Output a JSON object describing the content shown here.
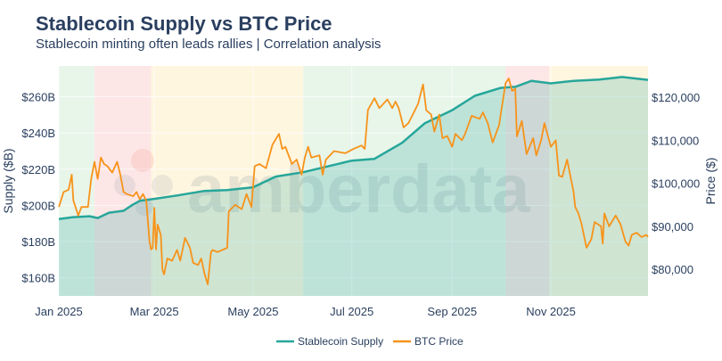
{
  "chart_data": {
    "type": "line",
    "title": "Stablecoin Supply vs BTC Price",
    "subtitle": "Stablecoin minting often leads rallies | Correlation analysis",
    "xlim": [
      "2025-01-01",
      "2025-12-31"
    ],
    "x_ticks": [
      {
        "date": "2025-01-01",
        "label": "Jan 2025"
      },
      {
        "date": "2025-03-01",
        "label": "Mar 2025"
      },
      {
        "date": "2025-05-01",
        "label": "May 2025"
      },
      {
        "date": "2025-07-01",
        "label": "Jul 2025"
      },
      {
        "date": "2025-09-01",
        "label": "Sep 2025"
      },
      {
        "date": "2025-11-01",
        "label": "Nov 2025"
      }
    ],
    "y_left": {
      "label": "Supply ($B)",
      "range": [
        150,
        277
      ],
      "ticks": [
        160,
        180,
        200,
        220,
        240,
        260
      ],
      "tick_labels": [
        "$160B",
        "$180B",
        "$200B",
        "$220B",
        "$240B",
        "$260B"
      ]
    },
    "y_right": {
      "label": "Price ($)",
      "range": [
        73800,
        127300
      ],
      "ticks": [
        80000,
        90000,
        100000,
        110000,
        120000
      ],
      "tick_labels": [
        "$80,000",
        "$90,000",
        "$100,000",
        "$110,000",
        "$120,000"
      ]
    },
    "grid": true,
    "legend": "bottom-center",
    "watermark": "amberdata",
    "regimes": [
      {
        "start": "2025-01-01",
        "end": "2025-01-23",
        "color": "#e8f5e9"
      },
      {
        "start": "2025-01-23",
        "end": "2025-02-27",
        "color": "#fde6e6"
      },
      {
        "start": "2025-02-27",
        "end": "2025-06-01",
        "color": "#fff6e0"
      },
      {
        "start": "2025-06-01",
        "end": "2025-10-04",
        "color": "#e8f5e9"
      },
      {
        "start": "2025-10-04",
        "end": "2025-10-31",
        "color": "#fde6e6"
      },
      {
        "start": "2025-10-31",
        "end": "2025-12-31",
        "color": "#fff6e0"
      }
    ],
    "series": [
      {
        "name": "Stablecoin Supply",
        "axis": "left",
        "color": "#26a69a",
        "fill": true,
        "points": [
          [
            "2025-01-01",
            192.5
          ],
          [
            "2025-01-10",
            193.5
          ],
          [
            "2025-01-20",
            194
          ],
          [
            "2025-01-25",
            193
          ],
          [
            "2025-02-01",
            196
          ],
          [
            "2025-02-10",
            197
          ],
          [
            "2025-02-15",
            200
          ],
          [
            "2025-02-20",
            202.5
          ],
          [
            "2025-03-01",
            203.6
          ],
          [
            "2025-03-15",
            205.5
          ],
          [
            "2025-04-01",
            208
          ],
          [
            "2025-04-15",
            208.5
          ],
          [
            "2025-05-01",
            210
          ],
          [
            "2025-05-15",
            215.9
          ],
          [
            "2025-06-01",
            218.3
          ],
          [
            "2025-07-01",
            224.7
          ],
          [
            "2025-07-15",
            225.7
          ],
          [
            "2025-08-01",
            234.5
          ],
          [
            "2025-08-15",
            245.3
          ],
          [
            "2025-09-01",
            252.6
          ],
          [
            "2025-09-15",
            260.5
          ],
          [
            "2025-10-01",
            264.9
          ],
          [
            "2025-10-10",
            265.5
          ],
          [
            "2025-10-20",
            268.8
          ],
          [
            "2025-11-01",
            267.4
          ],
          [
            "2025-11-15",
            268.8
          ],
          [
            "2025-12-01",
            269.5
          ],
          [
            "2025-12-15",
            270.9
          ],
          [
            "2025-12-31",
            269.3
          ]
        ]
      },
      {
        "name": "BTC Price",
        "axis": "right",
        "color": "#f7931a",
        "fill": false,
        "points": [
          [
            "2025-01-01",
            94500
          ],
          [
            "2025-01-04",
            98000
          ],
          [
            "2025-01-07",
            98500
          ],
          [
            "2025-01-09",
            102000
          ],
          [
            "2025-01-10",
            96000
          ],
          [
            "2025-01-13",
            92500
          ],
          [
            "2025-01-15",
            94500
          ],
          [
            "2025-01-19",
            94500
          ],
          [
            "2025-01-21",
            101000
          ],
          [
            "2025-01-23",
            105000
          ],
          [
            "2025-01-25",
            101000
          ],
          [
            "2025-01-27",
            106000
          ],
          [
            "2025-01-29",
            104500
          ],
          [
            "2025-01-31",
            104000
          ],
          [
            "2025-02-03",
            102500
          ],
          [
            "2025-02-06",
            105000
          ],
          [
            "2025-02-08",
            102000
          ],
          [
            "2025-02-10",
            98000
          ],
          [
            "2025-02-12",
            97500
          ],
          [
            "2025-02-16",
            97000
          ],
          [
            "2025-02-18",
            98000
          ],
          [
            "2025-02-20",
            96300
          ],
          [
            "2025-02-22",
            97500
          ],
          [
            "2025-02-24",
            96000
          ],
          [
            "2025-02-26",
            86500
          ],
          [
            "2025-02-27",
            84600
          ],
          [
            "2025-02-28",
            85000
          ],
          [
            "2025-03-01",
            94300
          ],
          [
            "2025-03-02",
            84600
          ],
          [
            "2025-03-03",
            90400
          ],
          [
            "2025-03-05",
            88000
          ],
          [
            "2025-03-06",
            80000
          ],
          [
            "2025-03-07",
            78800
          ],
          [
            "2025-03-09",
            82500
          ],
          [
            "2025-03-12",
            82000
          ],
          [
            "2025-03-15",
            84500
          ],
          [
            "2025-03-17",
            82000
          ],
          [
            "2025-03-20",
            87300
          ],
          [
            "2025-03-23",
            85000
          ],
          [
            "2025-03-25",
            81500
          ],
          [
            "2025-03-28",
            81000
          ],
          [
            "2025-03-30",
            82500
          ],
          [
            "2025-04-01",
            79000
          ],
          [
            "2025-04-03",
            76500
          ],
          [
            "2025-04-05",
            84000
          ],
          [
            "2025-04-06",
            84500
          ],
          [
            "2025-04-09",
            84000
          ],
          [
            "2025-04-15",
            85000
          ],
          [
            "2025-04-16",
            93500
          ],
          [
            "2025-04-20",
            95000
          ],
          [
            "2025-04-24",
            94000
          ],
          [
            "2025-04-27",
            97500
          ],
          [
            "2025-04-30",
            94500
          ],
          [
            "2025-05-02",
            104000
          ],
          [
            "2025-05-05",
            104500
          ],
          [
            "2025-05-09",
            103500
          ],
          [
            "2025-05-13",
            109000
          ],
          [
            "2025-05-17",
            111500
          ],
          [
            "2025-05-19",
            108000
          ],
          [
            "2025-05-21",
            108500
          ],
          [
            "2025-05-25",
            104500
          ],
          [
            "2025-05-28",
            105500
          ],
          [
            "2025-05-31",
            102000
          ],
          [
            "2025-06-02",
            106000
          ],
          [
            "2025-06-04",
            108500
          ],
          [
            "2025-06-06",
            106000
          ],
          [
            "2025-06-11",
            106500
          ],
          [
            "2025-06-13",
            102000
          ],
          [
            "2025-06-15",
            105500
          ],
          [
            "2025-06-20",
            107500
          ],
          [
            "2025-06-27",
            107000
          ],
          [
            "2025-07-02",
            108000
          ],
          [
            "2025-07-07",
            108800
          ],
          [
            "2025-07-09",
            108000
          ],
          [
            "2025-07-11",
            117100
          ],
          [
            "2025-07-15",
            119800
          ],
          [
            "2025-07-18",
            117500
          ],
          [
            "2025-07-23",
            119500
          ],
          [
            "2025-07-26",
            117500
          ],
          [
            "2025-07-28",
            119000
          ],
          [
            "2025-07-30",
            117500
          ],
          [
            "2025-08-02",
            113000
          ],
          [
            "2025-08-05",
            114000
          ],
          [
            "2025-08-07",
            115500
          ],
          [
            "2025-08-09",
            117000
          ],
          [
            "2025-08-11",
            118500
          ],
          [
            "2025-08-14",
            123000
          ],
          [
            "2025-08-16",
            117000
          ],
          [
            "2025-08-19",
            116000
          ],
          [
            "2025-08-21",
            112000
          ],
          [
            "2025-08-24",
            116000
          ],
          [
            "2025-08-26",
            110500
          ],
          [
            "2025-08-29",
            111000
          ],
          [
            "2025-09-01",
            108500
          ],
          [
            "2025-09-03",
            111500
          ],
          [
            "2025-09-07",
            110000
          ],
          [
            "2025-09-09",
            111500
          ],
          [
            "2025-09-13",
            115700
          ],
          [
            "2025-09-18",
            115000
          ],
          [
            "2025-09-20",
            116500
          ],
          [
            "2025-09-23",
            114000
          ],
          [
            "2025-09-26",
            109500
          ],
          [
            "2025-09-30",
            113500
          ],
          [
            "2025-10-02",
            118500
          ],
          [
            "2025-10-04",
            123300
          ],
          [
            "2025-10-06",
            124400
          ],
          [
            "2025-10-08",
            121500
          ],
          [
            "2025-10-10",
            122000
          ],
          [
            "2025-10-11",
            110900
          ],
          [
            "2025-10-14",
            114500
          ],
          [
            "2025-10-17",
            106800
          ],
          [
            "2025-10-21",
            110500
          ],
          [
            "2025-10-23",
            106500
          ],
          [
            "2025-10-26",
            110000
          ],
          [
            "2025-10-28",
            114000
          ],
          [
            "2025-11-01",
            108500
          ],
          [
            "2025-11-04",
            110000
          ],
          [
            "2025-11-06",
            101800
          ],
          [
            "2025-11-08",
            101500
          ],
          [
            "2025-11-11",
            105500
          ],
          [
            "2025-11-15",
            98000
          ],
          [
            "2025-11-16",
            94500
          ],
          [
            "2025-11-18",
            93000
          ],
          [
            "2025-11-20",
            90500
          ],
          [
            "2025-11-23",
            85000
          ],
          [
            "2025-11-26",
            87000
          ],
          [
            "2025-11-28",
            91000
          ],
          [
            "2025-12-02",
            90000
          ],
          [
            "2025-12-03",
            86000
          ],
          [
            "2025-12-04",
            93000
          ],
          [
            "2025-12-07",
            90000
          ],
          [
            "2025-12-11",
            92500
          ],
          [
            "2025-12-14",
            90500
          ],
          [
            "2025-12-17",
            86500
          ],
          [
            "2025-12-19",
            85500
          ],
          [
            "2025-12-21",
            88000
          ],
          [
            "2025-12-24",
            88500
          ],
          [
            "2025-12-27",
            87500
          ],
          [
            "2025-12-30",
            88000
          ],
          [
            "2025-12-31",
            87500
          ]
        ]
      }
    ]
  }
}
